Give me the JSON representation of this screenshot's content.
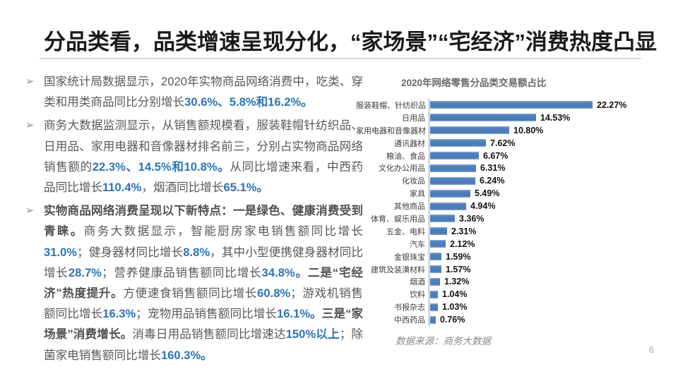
{
  "slide": {
    "title": "分品类看，品类增速呈现分化，“家场景”“宅经济”消费热度凸显",
    "page_number": "6"
  },
  "colors": {
    "title_text": "#1a1a1a",
    "body_text": "#595959",
    "highlight_blue": "#2E74B5",
    "bar_blue": "#4F81BD",
    "source_gray": "#8a8a8a"
  },
  "bullets": [
    {
      "marker": "➢",
      "segments": [
        {
          "t": "国家统计局数据显示，2020年实物商品网络消费中，吃类、穿类和用类商品同比分别增长",
          "s": "n"
        },
        {
          "t": "30.6%、5.8%和16.2%。",
          "s": "hl"
        }
      ]
    },
    {
      "marker": "➢",
      "segments": [
        {
          "t": "商务大数据监测显示，从销售额规模看，服装鞋帽针纺织品、日用品、家用电器和音像器材排名前三，分别占实物商品网络销售额的",
          "s": "n"
        },
        {
          "t": "22.3%、14.5%和10.8%。",
          "s": "hl"
        },
        {
          "t": "从同比增速来看，中西药品同比增长",
          "s": "n"
        },
        {
          "t": "110.4%",
          "s": "hl"
        },
        {
          "t": "，烟酒同比增长",
          "s": "n"
        },
        {
          "t": "65.1%。",
          "s": "hl"
        }
      ]
    },
    {
      "marker": "➢",
      "segments": [
        {
          "t": "实物商品网络消费呈现以下新特点：一是绿色、健康消费受到青睐。",
          "s": "b"
        },
        {
          "t": "商务大数据显示，智能厨房家电销售额同比增长",
          "s": "n"
        },
        {
          "t": "31.0%",
          "s": "hl"
        },
        {
          "t": "；健身器材同比增长",
          "s": "n"
        },
        {
          "t": "8.8%",
          "s": "hl"
        },
        {
          "t": "，其中小型便携健身器材同比增长",
          "s": "n"
        },
        {
          "t": "28.7%",
          "s": "hl"
        },
        {
          "t": "；营养健康品销售额同比增长",
          "s": "n"
        },
        {
          "t": "34.8%。",
          "s": "hl"
        },
        {
          "t": "二是“宅经济”热度提升。",
          "s": "b"
        },
        {
          "t": "方便速食销售额同比增长",
          "s": "n"
        },
        {
          "t": "60.8%",
          "s": "hl"
        },
        {
          "t": "；游戏机销售额同比增长",
          "s": "n"
        },
        {
          "t": "16.3%",
          "s": "hl"
        },
        {
          "t": "；宠物用品销售额同比增长",
          "s": "n"
        },
        {
          "t": "16.1%。",
          "s": "hl"
        },
        {
          "t": "三是“家场景”消费增长。",
          "s": "b"
        },
        {
          "t": "消毒日用品销售额同比增速达",
          "s": "n"
        },
        {
          "t": "150%以上",
          "s": "hl"
        },
        {
          "t": "；除菌家电销售额同比增长",
          "s": "n"
        },
        {
          "t": "160.3%。",
          "s": "hl"
        }
      ]
    }
  ],
  "chart": {
    "title": "2020年网络零售分品类交易额占比",
    "source": "数据来源：商务大数据",
    "rows": [
      {
        "label": "服装鞋帽、针纺织品",
        "value_label": "22.27%",
        "value": 22.27
      },
      {
        "label": "日用品",
        "value_label": "14.53%",
        "value": 14.53
      },
      {
        "label": "家用电器和音像器材",
        "value_label": "10.80%",
        "value": 10.8
      },
      {
        "label": "通讯器材",
        "value_label": "7.62%",
        "value": 7.62
      },
      {
        "label": "粮油、食品",
        "value_label": "6.67%",
        "value": 6.67
      },
      {
        "label": "文化办公用品",
        "value_label": "6.31%",
        "value": 6.31
      },
      {
        "label": "化妆品",
        "value_label": "6.24%",
        "value": 6.24
      },
      {
        "label": "家具",
        "value_label": "5.49%",
        "value": 5.49
      },
      {
        "label": "其他商品",
        "value_label": "4.94%",
        "value": 4.94
      },
      {
        "label": "体育、娱乐用品",
        "value_label": "3.36%",
        "value": 3.36
      },
      {
        "label": "五金、电料",
        "value_label": "2.31%",
        "value": 2.31
      },
      {
        "label": "汽车",
        "value_label": "2.12%",
        "value": 2.12
      },
      {
        "label": "金银珠宝",
        "value_label": "1.59%",
        "value": 1.59
      },
      {
        "label": "建筑及装潢材料",
        "value_label": "1.57%",
        "value": 1.57
      },
      {
        "label": "烟酒",
        "value_label": "1.32%",
        "value": 1.32
      },
      {
        "label": "饮料",
        "value_label": "1.04%",
        "value": 1.04
      },
      {
        "label": "书报杂志",
        "value_label": "1.03%",
        "value": 1.03
      },
      {
        "label": "中西药品",
        "value_label": "0.76%",
        "value": 0.76
      }
    ]
  },
  "chart_data": {
    "type": "bar",
    "orientation": "horizontal",
    "title": "2020年网络零售分品类交易额占比",
    "categories": [
      "服装鞋帽、针纺织品",
      "日用品",
      "家用电器和音像器材",
      "通讯器材",
      "粮油、食品",
      "文化办公用品",
      "化妆品",
      "家具",
      "其他商品",
      "体育、娱乐用品",
      "五金、电料",
      "汽车",
      "金银珠宝",
      "建筑及装潢材料",
      "烟酒",
      "饮料",
      "书报杂志",
      "中西药品"
    ],
    "values": [
      22.27,
      14.53,
      10.8,
      7.62,
      6.67,
      6.31,
      6.24,
      5.49,
      4.94,
      3.36,
      2.31,
      2.12,
      1.59,
      1.57,
      1.32,
      1.04,
      1.03,
      0.76
    ],
    "unit": "%",
    "xlabel": "",
    "ylabel": "",
    "xlim": [
      0,
      24
    ],
    "grid": false,
    "legend": false,
    "data_labels_shown": true,
    "source_note": "数据来源：商务大数据"
  }
}
